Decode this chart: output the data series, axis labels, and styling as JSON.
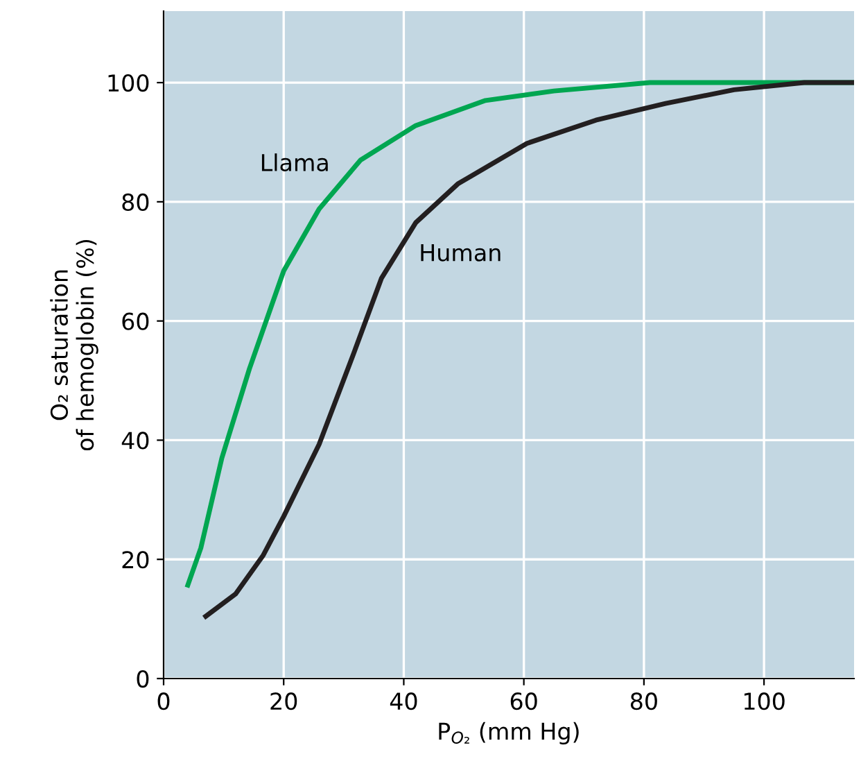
{
  "chart_data": {
    "type": "line",
    "xlabel": "P$_{O₂}$ (mm Hg)",
    "ylabel": "O₂ saturation\nof hemoglobin (%)",
    "xlim": [
      0,
      115
    ],
    "ylim": [
      0,
      112
    ],
    "xticks": [
      0,
      20,
      40,
      60,
      80,
      100
    ],
    "yticks": [
      0,
      20,
      40,
      60,
      80,
      100
    ],
    "grid": true,
    "legend": false,
    "marker": "none",
    "line_style": "solid",
    "series": [
      {
        "x": [
          3.9,
          6.2,
          9.7,
          14.3,
          20,
          25.9,
          32.8,
          42,
          53.6,
          65,
          81,
          115
        ],
        "values": [
          15.3,
          21.9,
          37,
          52,
          68.4,
          78.8,
          87,
          92.8,
          97,
          98.6,
          100,
          100
        ],
        "color": "#00a651"
      },
      {
        "x": [
          6.7,
          12,
          16.6,
          20,
          25.9,
          31.6,
          36.3,
          42,
          49,
          60.5,
          72,
          83.6,
          95,
          106.7,
          115
        ],
        "values": [
          10.2,
          14.2,
          20.7,
          27.2,
          39.3,
          54.4,
          67.2,
          76.5,
          83,
          89.8,
          93.7,
          96.5,
          98.8,
          100,
          100
        ],
        "color": "#231f20"
      }
    ],
    "annotations": [
      "Llama",
      "Human"
    ]
  }
}
